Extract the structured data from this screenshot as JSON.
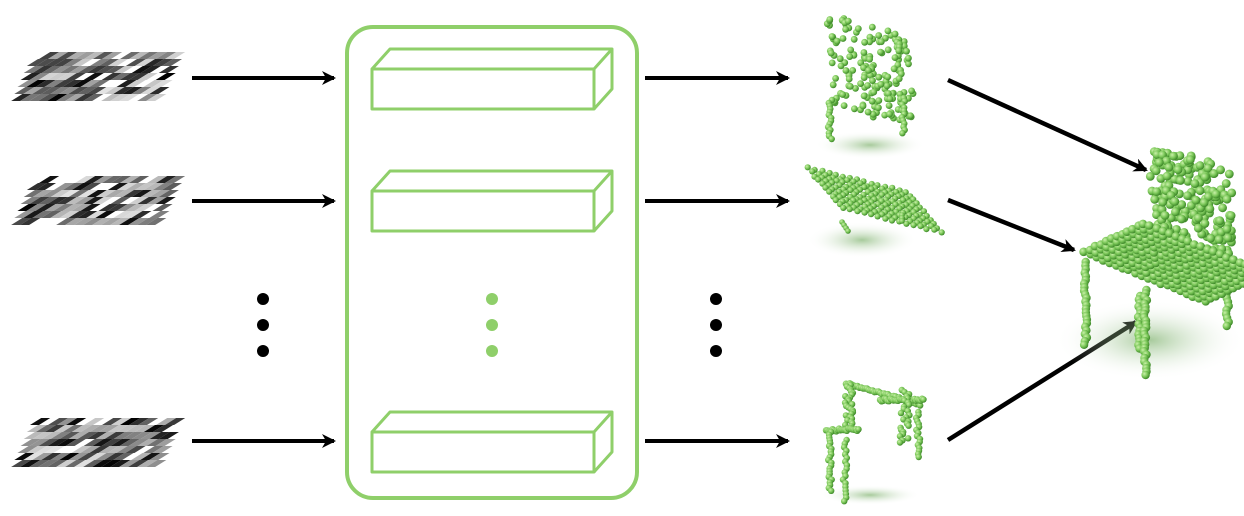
{
  "diagram": {
    "colors": {
      "accent_green": "#8fcf6a",
      "accent_green_dark": "#5fa83c",
      "point_green": "#7cc85a",
      "arrow": "#000000"
    },
    "rows": [
      {
        "input": "noise-grid",
        "output": "chair-back-points"
      },
      {
        "input": "noise-grid",
        "output": "chair-seat-points"
      },
      {
        "input": "noise-grid",
        "output": "chair-legs-points"
      }
    ],
    "ellipsis_between": "rows 2 and 3",
    "merged_output": "chair-point-cloud",
    "icons": {
      "noise_grid": "noise-grid-icon",
      "block": "cuboid-block-icon",
      "point_cloud": "point-cloud-icon"
    }
  }
}
